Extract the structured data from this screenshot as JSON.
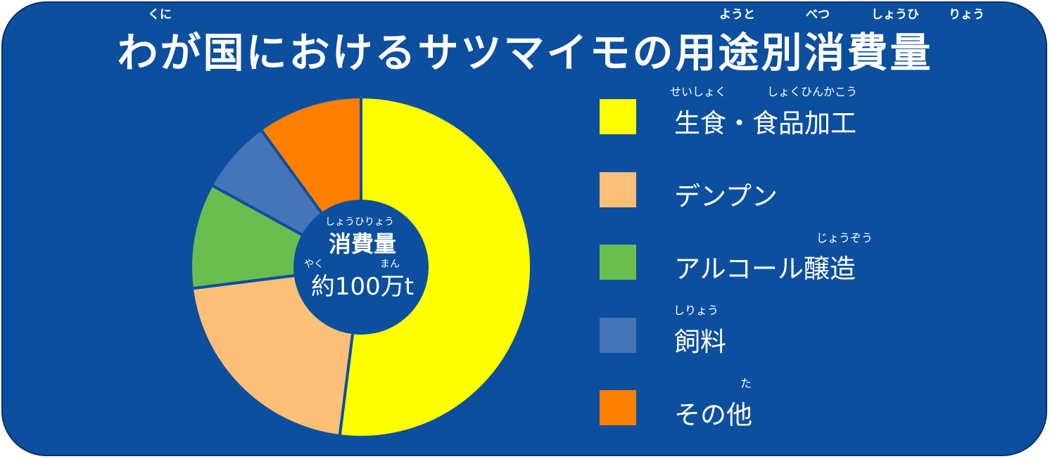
{
  "colors": {
    "background": "#0d4f9f",
    "text": "#ffffff",
    "separator": "#0d4f9f"
  },
  "title": {
    "text": "わが国におけるサツマイモの用途別消費量",
    "ruby": [
      "くに",
      "ようと",
      "べつ",
      "しょうひ",
      "りょう"
    ]
  },
  "chart_data": {
    "type": "pie",
    "donut": true,
    "center": {
      "ruby_top": "しょうひりょう",
      "label": "消費量",
      "ruby_yaku": "やく",
      "ruby_man": "まん",
      "total": "約100万t"
    },
    "slices": [
      {
        "label": "生食・食品加工",
        "ruby": "せいしょく　しょくひんかこう",
        "value": 52,
        "color": "#ffff00"
      },
      {
        "label": "デンプン",
        "ruby": "",
        "value": 21,
        "color": "#fbbf78"
      },
      {
        "label": "アルコール醸造",
        "ruby": "じょうぞう",
        "value": 10,
        "color": "#6abe4f"
      },
      {
        "label": "飼料",
        "ruby": "しりょう",
        "value": 7,
        "color": "#4674b8"
      },
      {
        "label": "その他",
        "ruby": "た",
        "value": 10,
        "color": "#ff7f00"
      }
    ]
  },
  "legend": {
    "ruby_shokuhin_a": "せいしょく",
    "ruby_shokuhin_b": "しょくひんかこう"
  }
}
